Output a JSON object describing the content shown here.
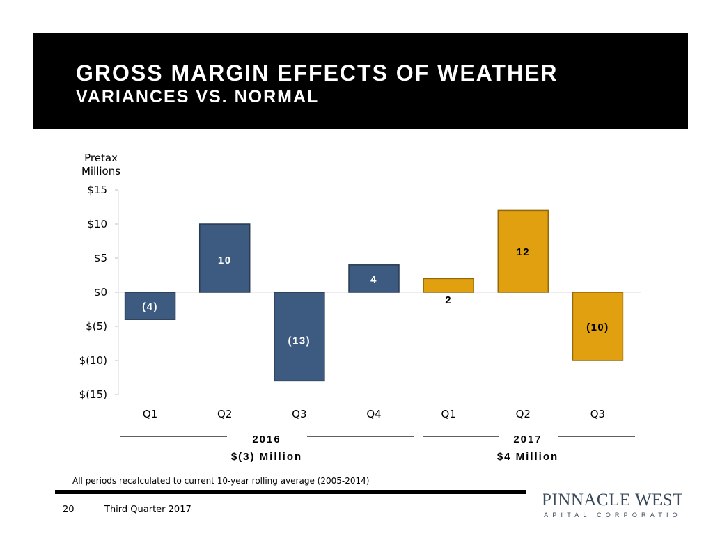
{
  "header": {
    "title": "GROSS MARGIN EFFECTS OF WEATHER",
    "subtitle": "VARIANCES VS. NORMAL"
  },
  "chart_data": {
    "type": "bar",
    "ylabel_line1": "Pretax",
    "ylabel_line2": "Millions",
    "categories": [
      "Q1",
      "Q2",
      "Q3",
      "Q4",
      "Q1",
      "Q2",
      "Q3"
    ],
    "values": [
      -4,
      10,
      -13,
      4,
      2,
      12,
      -10
    ],
    "value_labels": [
      "(4)",
      "10",
      "(13)",
      "4",
      "2",
      "12",
      "(10)"
    ],
    "years": [
      "2016",
      "2016",
      "2016",
      "2016",
      "2017",
      "2017",
      "2017"
    ],
    "ylim": [
      -15,
      15
    ],
    "yticks": [
      15,
      10,
      5,
      0,
      -5,
      -10,
      -15
    ],
    "ytick_labels": [
      "$15",
      "$10",
      "$5",
      "$0",
      "$(5)",
      "$(10)",
      "$(15)"
    ],
    "colors": {
      "2016": "#3D5B80",
      "2017": "#E0A010"
    },
    "groups": [
      {
        "year": "2016",
        "total": "$(3) Million"
      },
      {
        "year": "2017",
        "total": "$4 Million"
      }
    ]
  },
  "footnote": "All periods recalculated to current 10-year rolling average (2005-2014)",
  "footer": {
    "page_number": "20",
    "quarter": "Third Quarter 2017",
    "logo_main": "PINNACLE WEST",
    "logo_sub": "CAPITAL CORPORATION"
  }
}
